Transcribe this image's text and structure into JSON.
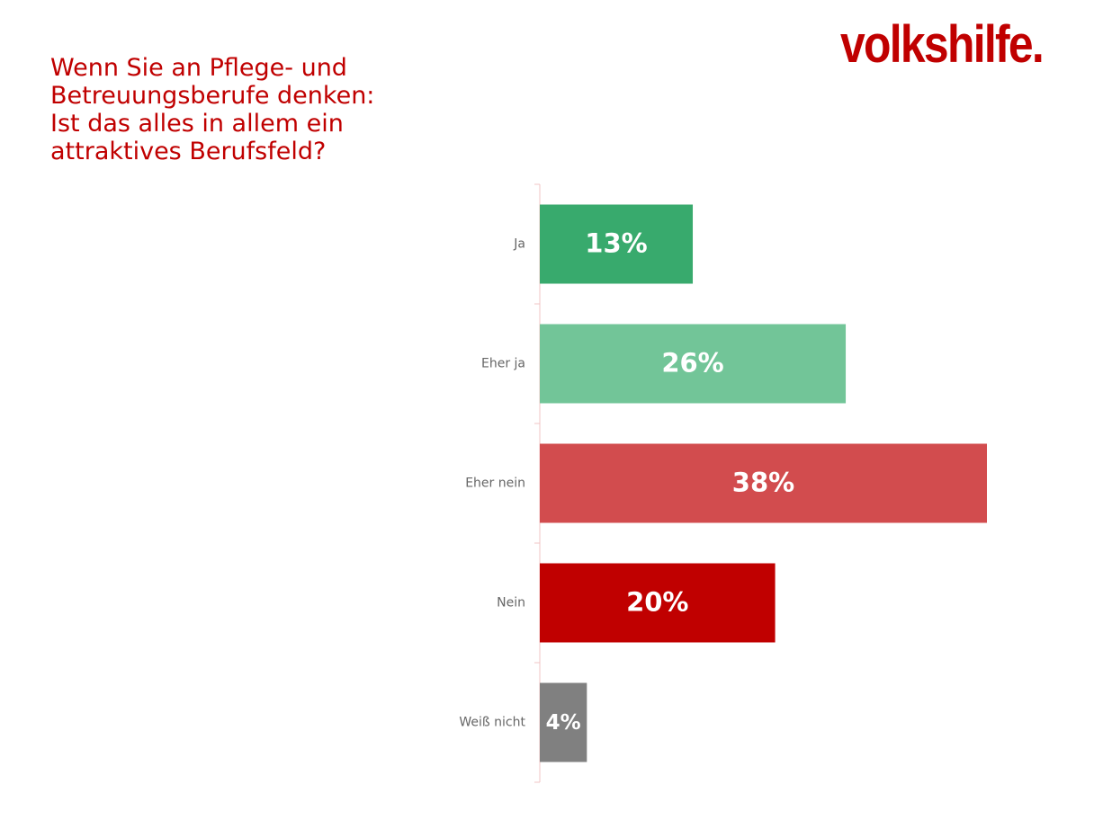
{
  "slide": {
    "question_lines": [
      "Wenn Sie an Pflege- und",
      "Betreuungsberufe denken:",
      "Ist das alles in allem ein",
      "attraktives Berufsfeld?"
    ],
    "logo_text": "volkshilfe."
  },
  "chart_data": {
    "type": "bar",
    "orientation": "horizontal",
    "title": "Wenn Sie an Pflege- und Betreuungsberufe denken: Ist das alles in allem ein attraktives Berufsfeld?",
    "categories": [
      "Ja",
      "Eher ja",
      "Eher nein",
      "Nein",
      "Weiß nicht"
    ],
    "values": [
      13,
      26,
      38,
      20,
      4
    ],
    "value_labels": [
      "13%",
      "26%",
      "38%",
      "20%",
      "4%"
    ],
    "unit": "%",
    "colors": [
      "#38aa6d",
      "#72c598",
      "#d24c4e",
      "#c00000",
      "#808080"
    ],
    "axis_color": "#f2c4c4",
    "label_color": "#666666",
    "xlim": [
      0,
      38
    ],
    "grid": false,
    "legend": "none"
  }
}
